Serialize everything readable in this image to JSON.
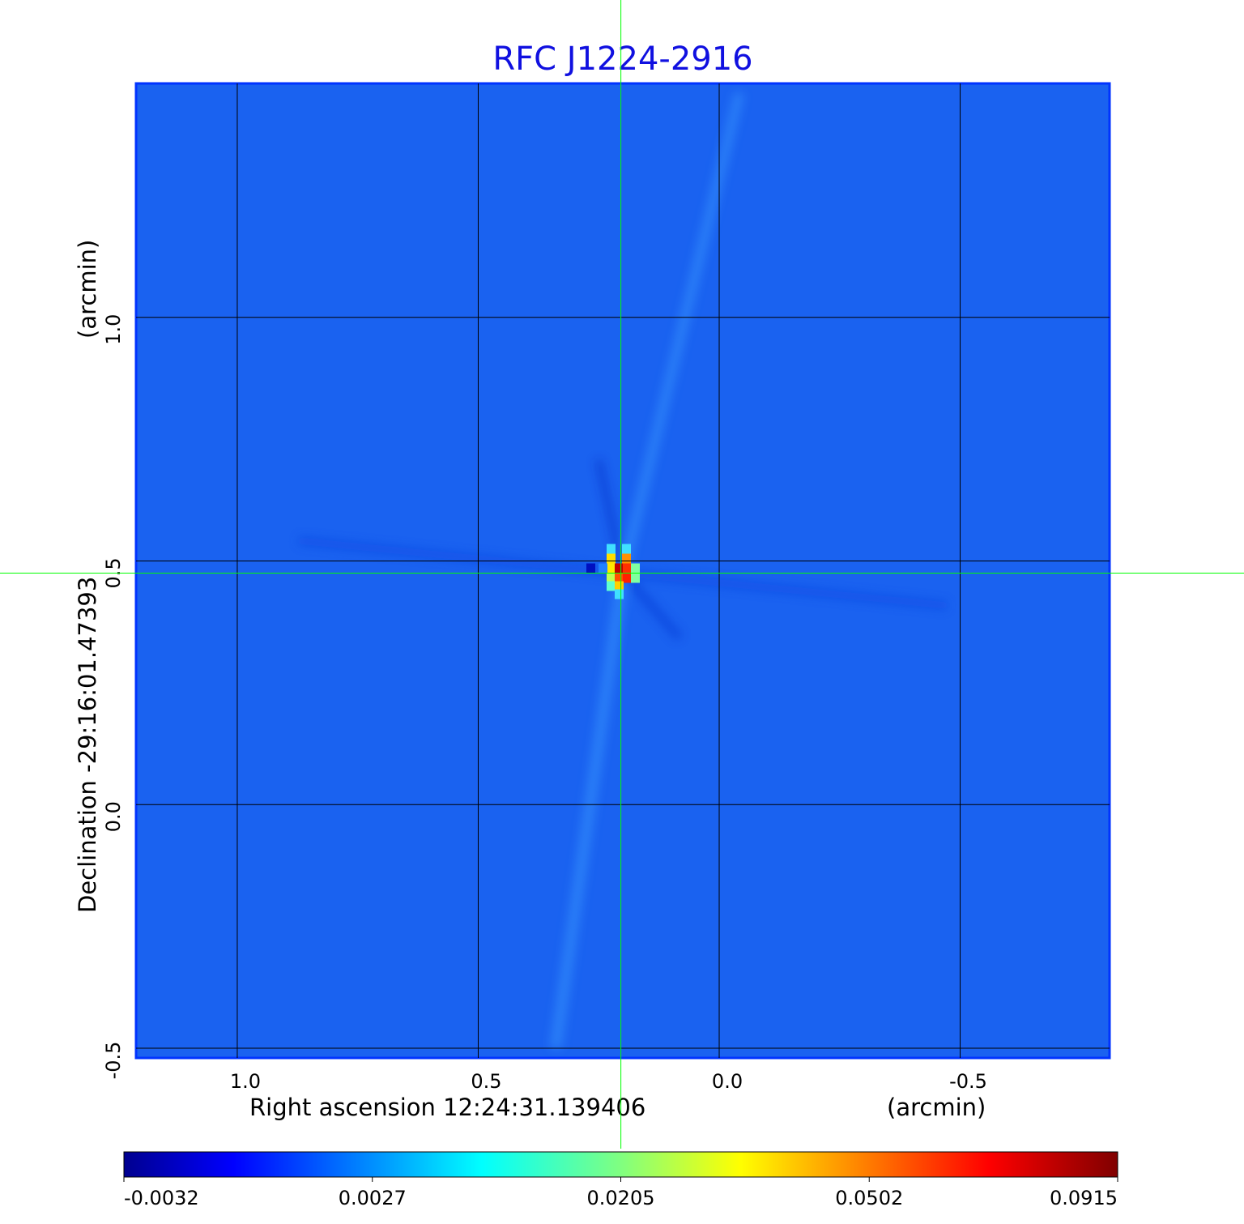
{
  "chart_data": {
    "type": "heatmap",
    "title": "RFC J1224-2916",
    "title_color": "#1010e0",
    "xlabel": "Right ascension  12:24:31.139406",
    "xunit": "(arcmin)",
    "ylabel": "Declination  -29:16:01.47393",
    "yunit": "(arcmin)",
    "xlim": [
      1.21,
      -0.81
    ],
    "ylim": [
      -0.52,
      1.48
    ],
    "xticks": [
      {
        "value": 1.0,
        "label": "1.0"
      },
      {
        "value": 0.5,
        "label": "0.5"
      },
      {
        "value": 0.0,
        "label": "0.0"
      },
      {
        "value": -0.5,
        "label": "-0.5"
      }
    ],
    "yticks": [
      {
        "value": 1.0,
        "label": "1.0"
      },
      {
        "value": 0.5,
        "label": "0.5"
      },
      {
        "value": 0.0,
        "label": "0.0"
      },
      {
        "value": -0.5,
        "label": "-0.5"
      }
    ],
    "grid": true,
    "grid_color": "#000000",
    "crosshair": {
      "x": 0.204,
      "y": 0.475,
      "color": "#00ff00"
    },
    "colormap": "jet",
    "background_value": 0.0,
    "peak": {
      "x": 0.2,
      "y": 0.475,
      "value": 0.0915
    },
    "colorbar": {
      "min": -0.0032,
      "max": 0.0915,
      "ticks": [
        "-0.0032",
        "0.0027",
        "0.0205",
        "0.0502",
        "0.0915"
      ]
    }
  }
}
